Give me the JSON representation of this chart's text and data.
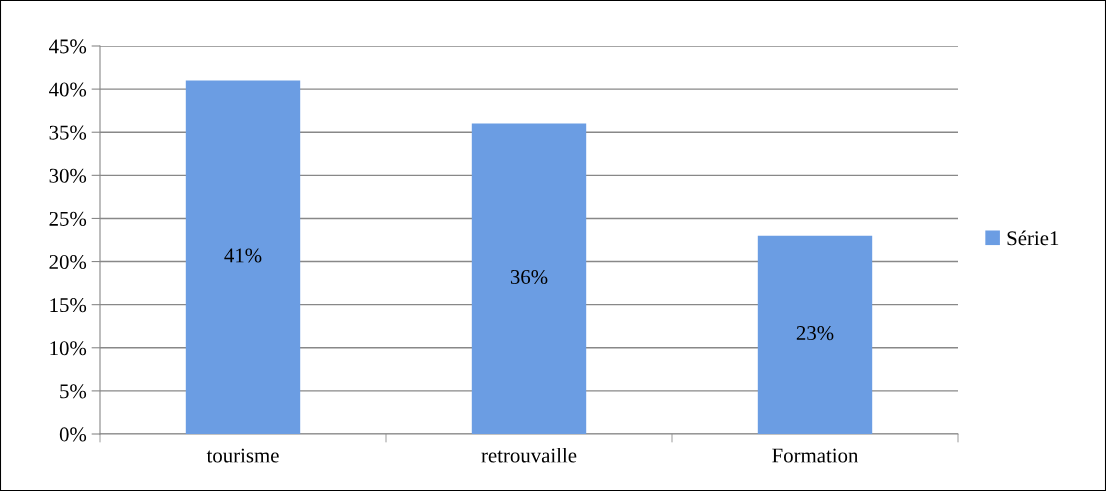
{
  "chart_data": {
    "type": "bar",
    "categories": [
      "tourisme",
      "retrouvaille",
      "Formation"
    ],
    "series": [
      {
        "name": "Série1",
        "color": "#6b9de3",
        "values": [
          41,
          36,
          23
        ],
        "value_labels": [
          "41%",
          "36%",
          "23%"
        ]
      }
    ],
    "ylim": [
      0,
      45
    ],
    "yticks": [
      {
        "value": 0,
        "label": "0%"
      },
      {
        "value": 5,
        "label": "5%"
      },
      {
        "value": 10,
        "label": "10%"
      },
      {
        "value": 15,
        "label": "15%"
      },
      {
        "value": 20,
        "label": "20%"
      },
      {
        "value": 25,
        "label": "25%"
      },
      {
        "value": 30,
        "label": "30%"
      },
      {
        "value": 35,
        "label": "35%"
      },
      {
        "value": 40,
        "label": "40%"
      },
      {
        "value": 45,
        "label": "45%"
      }
    ],
    "grid": "y",
    "legend": "right"
  }
}
